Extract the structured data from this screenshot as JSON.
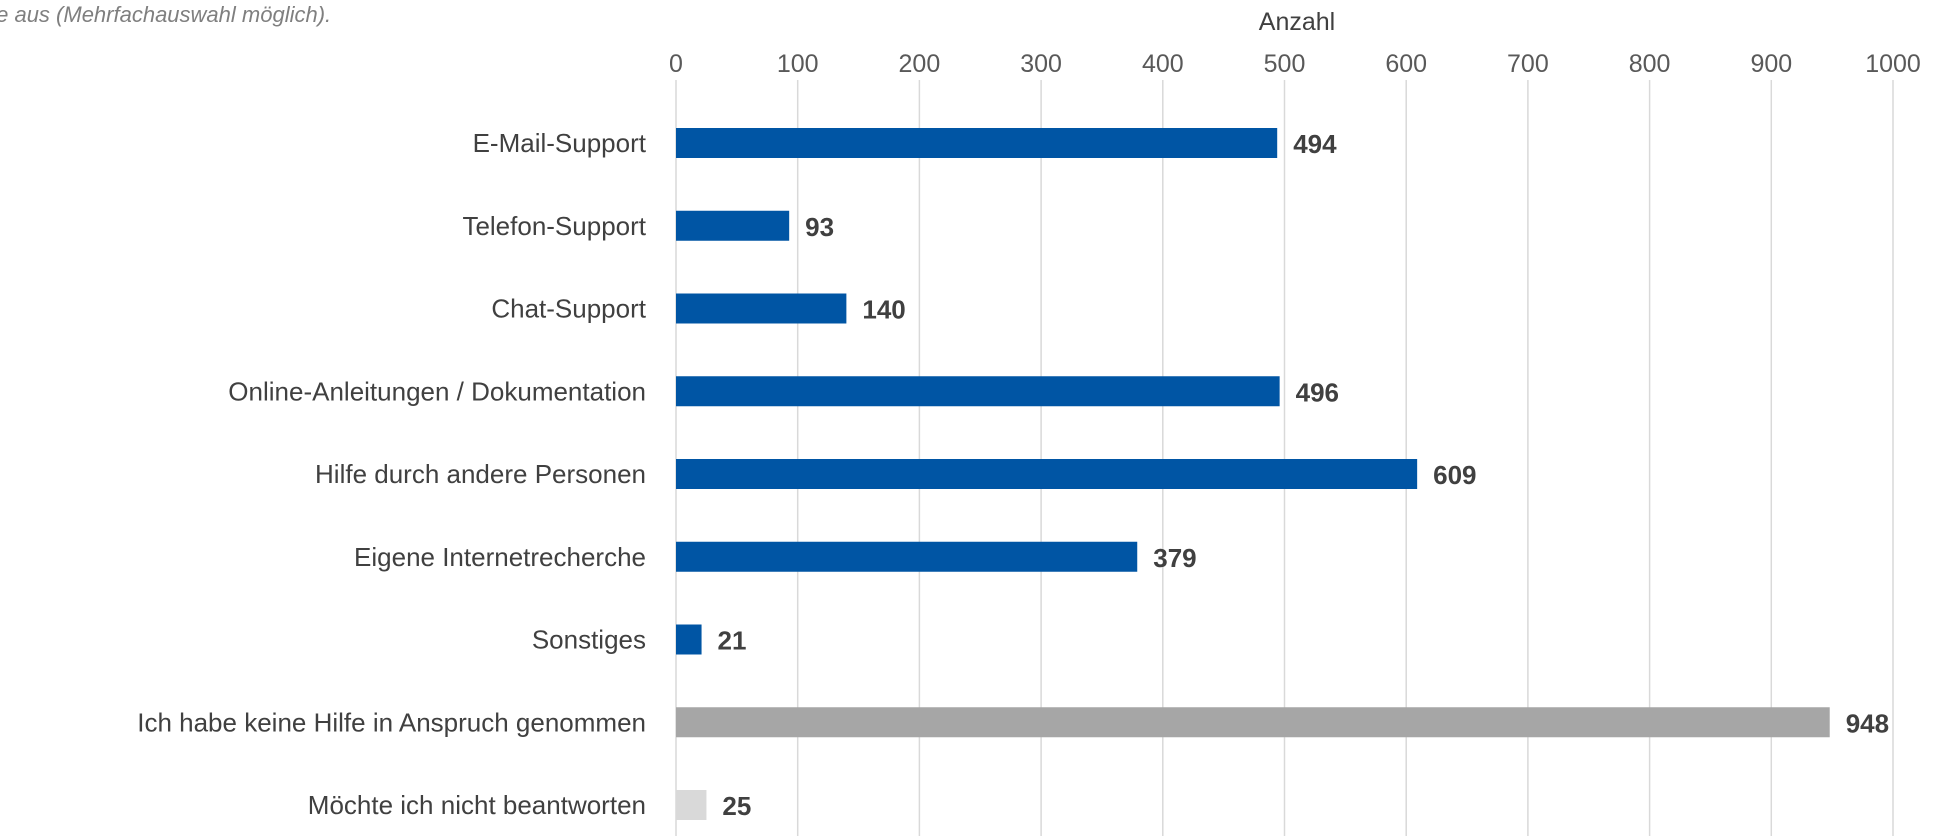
{
  "chart_data": {
    "type": "bar",
    "orientation": "horizontal",
    "subtitle": "fe aus (Mehrfachauswahl möglich).",
    "xlabel": "Anzahl",
    "xlim": [
      0,
      1000
    ],
    "ticks": [
      0,
      100,
      200,
      300,
      400,
      500,
      600,
      700,
      800,
      900,
      1000
    ],
    "grid": true,
    "categories": [
      "E-Mail-Support",
      "Telefon-Support",
      "Chat-Support",
      "Online-Anleitungen / Dokumentation",
      "Hilfe durch andere Personen",
      "Eigene Internetrecherche",
      "Sonstiges",
      "Ich habe keine Hilfe in Anspruch genommen",
      "Möchte ich nicht beantworten"
    ],
    "values": [
      494,
      93,
      140,
      496,
      609,
      379,
      21,
      948,
      25
    ],
    "bar_colors": [
      "#0055a4",
      "#0055a4",
      "#0055a4",
      "#0055a4",
      "#0055a4",
      "#0055a4",
      "#0055a4",
      "#a6a6a6",
      "#d9d9d9"
    ]
  }
}
